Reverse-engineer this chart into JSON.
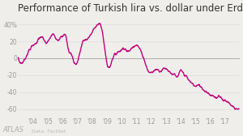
{
  "title": "Performance of Turkish lira vs. dollar under Erdogan",
  "title_fontsize": 8.5,
  "line_color": "#c0007a",
  "bg_color": "#f0eeeb",
  "plot_bg_color": "#f0eeeb",
  "ylabel_ticks": [
    "40%",
    "20",
    "0",
    "-20",
    "-40",
    "-60"
  ],
  "ytick_vals": [
    40,
    20,
    0,
    -20,
    -40,
    -60
  ],
  "ylim": [
    -70,
    50
  ],
  "xlim_start": 2003.0,
  "xlim_end": 2018.0,
  "xtick_labels": [
    "'04",
    "'05",
    "'06",
    "'07",
    "'08",
    "'09",
    "'10",
    "'11",
    "'12",
    "'13",
    "'14",
    "'15",
    "'16",
    "'17"
  ],
  "xtick_vals": [
    2004,
    2005,
    2006,
    2007,
    2008,
    2009,
    2010,
    2011,
    2012,
    2013,
    2014,
    2015,
    2016,
    2017
  ],
  "zero_line_color": "#999999",
  "grid_color": "#dddddd",
  "watermark": "ATLAS",
  "source": "Data: FactSet",
  "line_width": 1.0
}
